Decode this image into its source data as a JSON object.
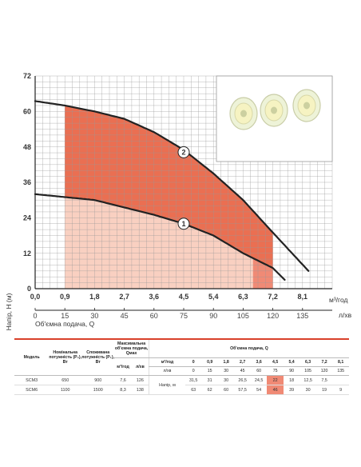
{
  "chart_data": {
    "type": "line",
    "title": "",
    "ylabel": "Напір, H (м)",
    "xlabel": "Об'ємна подача, Q",
    "x_unit_top": "м³/год",
    "x_unit_bottom": "л/хв",
    "ylim": [
      0,
      72
    ],
    "y_ticks": [
      "0",
      "12",
      "24",
      "36",
      "48",
      "60",
      "72"
    ],
    "x_ticks_m3h": [
      "0,0",
      "0,9",
      "1,8",
      "2,7",
      "3,6",
      "4,5",
      "5,4",
      "6,3",
      "7,2",
      "8,1"
    ],
    "x_ticks_lmin": [
      "0",
      "15",
      "30",
      "45",
      "60",
      "75",
      "90",
      "105",
      "120",
      "135"
    ],
    "grid": true,
    "series": [
      {
        "name": "1",
        "x_lmin": [
          0,
          15,
          30,
          45,
          60,
          75,
          90,
          105,
          120,
          126
        ],
        "y": [
          32,
          31,
          30,
          27.5,
          25,
          22,
          18,
          12,
          7,
          3
        ]
      },
      {
        "name": "2",
        "x_lmin": [
          0,
          15,
          30,
          45,
          60,
          75,
          90,
          105,
          120,
          138
        ],
        "y": [
          63.5,
          62,
          60,
          57.5,
          53,
          47,
          39,
          30,
          19,
          6
        ]
      }
    ],
    "operating_range_lmin": [
      15,
      120
    ],
    "colors": {
      "curve": "#222222",
      "zone2": "#ea6f52",
      "zone1": "#f9d0c1",
      "zone_end": "#f08a75",
      "grid": "#9a9a9a",
      "bg": "#ffffff"
    }
  },
  "table": {
    "headers": {
      "model": "Модель",
      "p2": "Номінальна потужність (P₂), Вт",
      "p1": "Споживана потужність (P₁), Вт",
      "qmax": "Максимальна об'ємна подача, Qмах",
      "m3h_unit": "м³/год",
      "lmin_unit": "л/хв",
      "flow_group": "Об'ємна подача, Q",
      "flow_m3h_label": "м³/год",
      "flow_lmin_label": "л/хв",
      "head_label": "Напір, м"
    },
    "flow_m3h": [
      "0",
      "0,9",
      "1,8",
      "2,7",
      "3,6",
      "4,5",
      "5,4",
      "6,3",
      "7,2",
      "8,1"
    ],
    "flow_lmin": [
      "0",
      "15",
      "30",
      "45",
      "60",
      "75",
      "90",
      "105",
      "120",
      "135"
    ],
    "rows": [
      {
        "model": "SCM3",
        "p2": "650",
        "p1": "900",
        "qmax_m3h": "7,6",
        "qmax_lmin": "126",
        "heads": [
          "31,5",
          "31",
          "30",
          "26,5",
          "24,5",
          "22",
          "18",
          "12,5",
          "7,5",
          ""
        ]
      },
      {
        "model": "SCM6",
        "p2": "1100",
        "p1": "1500",
        "qmax_m3h": "8,3",
        "qmax_lmin": "138",
        "heads": [
          "63",
          "62",
          "60",
          "57,5",
          "54",
          "46",
          "39",
          "30",
          "19",
          "9"
        ]
      }
    ],
    "highlight_col": 6
  }
}
